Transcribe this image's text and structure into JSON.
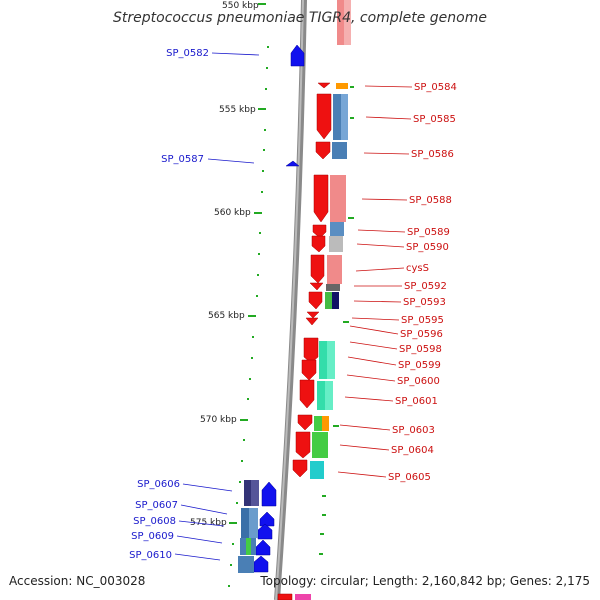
{
  "title": "Streptococcus pneumoniae TIGR4, complete genome",
  "accession": "Accession: NC_003028",
  "topology": "Topology: circular; Length: 2,160,842 bp; Genes: 2,175",
  "scale_ticks": [
    "550 kbp",
    "555 kbp",
    "560 kbp",
    "565 kbp",
    "570 kbp",
    "575 kbp"
  ],
  "left_genes": [
    "SP_0582",
    "SP_0587",
    "SP_0606",
    "SP_0607",
    "SP_0608",
    "SP_0609",
    "SP_0610"
  ],
  "right_genes": [
    "SP_0584",
    "SP_0585",
    "SP_0586",
    "SP_0588",
    "SP_0589",
    "SP_0590",
    "cysS",
    "SP_0592",
    "SP_0593",
    "SP_0595",
    "SP_0596",
    "SP_0598",
    "SP_0599",
    "SP_0600",
    "SP_0601",
    "SP_0603",
    "SP_0604",
    "SP_0605"
  ],
  "colors": {
    "left_label": "#1a1acc",
    "right_label": "#cc1111",
    "forward_gene": "#ee1111",
    "reverse_gene": "#1111ee",
    "tick": "#22aa22",
    "backbone": "#888888",
    "leader_right": "#cc1111",
    "leader_left": "#1a1acc"
  }
}
